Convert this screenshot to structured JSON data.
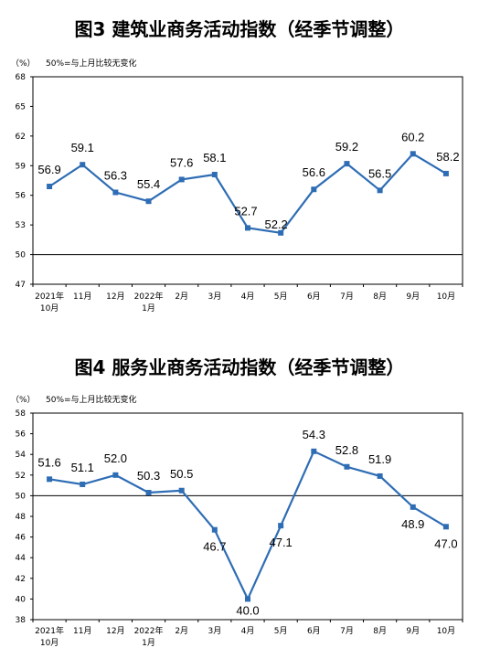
{
  "chart_data": [
    {
      "type": "line",
      "title": "图3  建筑业商务活动指数（经季节调整）",
      "unit": "（%）",
      "note": "50%=与上月比较无变化",
      "categories": [
        [
          "2021年",
          "10月"
        ],
        [
          "11月"
        ],
        [
          "12月"
        ],
        [
          "2022年",
          "1月"
        ],
        [
          "2月"
        ],
        [
          "3月"
        ],
        [
          "4月"
        ],
        [
          "5月"
        ],
        [
          "6月"
        ],
        [
          "7月"
        ],
        [
          "8月"
        ],
        [
          "9月"
        ],
        [
          "10月"
        ]
      ],
      "values": [
        56.9,
        59.1,
        56.3,
        55.4,
        57.6,
        58.1,
        52.7,
        52.2,
        56.6,
        59.2,
        56.5,
        60.2,
        58.2
      ],
      "ylim": [
        47,
        68
      ],
      "yticks": [
        47,
        50,
        53,
        56,
        59,
        62,
        65,
        68
      ],
      "reference_line": 50,
      "grid": false,
      "color": "#2e6db4"
    },
    {
      "type": "line",
      "title": "图4  服务业商务活动指数（经季节调整）",
      "unit": "（%）",
      "note": "50%=与上月比较无变化",
      "categories": [
        [
          "2021年",
          "10月"
        ],
        [
          "11月"
        ],
        [
          "12月"
        ],
        [
          "2022年",
          "1月"
        ],
        [
          "2月"
        ],
        [
          "3月"
        ],
        [
          "4月"
        ],
        [
          "5月"
        ],
        [
          "6月"
        ],
        [
          "7月"
        ],
        [
          "8月"
        ],
        [
          "9月"
        ],
        [
          "10月"
        ]
      ],
      "values": [
        51.6,
        51.1,
        52.0,
        50.3,
        50.5,
        46.7,
        40.0,
        47.1,
        54.3,
        52.8,
        51.9,
        48.9,
        47.0
      ],
      "ylim": [
        38,
        58
      ],
      "yticks": [
        38,
        40,
        42,
        44,
        46,
        48,
        50,
        52,
        54,
        56,
        58
      ],
      "reference_line": 50,
      "grid": false,
      "color": "#2e6db4"
    }
  ]
}
